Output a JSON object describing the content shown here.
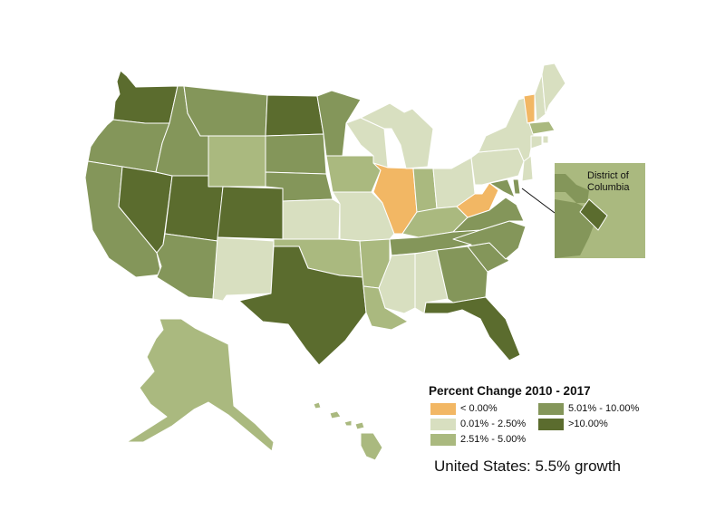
{
  "map": {
    "inset": {
      "label_line1": "District of",
      "label_line2": "Columbia"
    },
    "legend": {
      "title": "Percent Change 2010 - 2017",
      "classes": [
        {
          "key": "neg",
          "label": "< 0.00%",
          "color": "#f2b764"
        },
        {
          "key": "c1",
          "label": "0.01% - 2.50%",
          "color": "#d8dfc0"
        },
        {
          "key": "c2",
          "label": "2.51% - 5.00%",
          "color": "#aab97f"
        },
        {
          "key": "c3",
          "label": "5.01% - 10.00%",
          "color": "#84965a"
        },
        {
          "key": "c4",
          "label": ">10.00%",
          "color": "#5b6c2e"
        }
      ]
    },
    "summary": "United States: 5.5% growth",
    "states": {
      "WA": "c4",
      "OR": "c3",
      "CA": "c3",
      "NV": "c4",
      "ID": "c3",
      "MT": "c3",
      "WY": "c2",
      "UT": "c4",
      "AZ": "c3",
      "CO": "c4",
      "NM": "c1",
      "ND": "c4",
      "SD": "c3",
      "NE": "c3",
      "KS": "c1",
      "OK": "c2",
      "TX": "c4",
      "MN": "c3",
      "IA": "c2",
      "MO": "c1",
      "AR": "c2",
      "LA": "c2",
      "WI": "c1",
      "IL": "neg",
      "MI": "c1",
      "IN": "c2",
      "OH": "c1",
      "KY": "c2",
      "TN": "c3",
      "MS": "c1",
      "AL": "c1",
      "GA": "c3",
      "FL": "c4",
      "SC": "c3",
      "NC": "c3",
      "VA": "c3",
      "WV": "neg",
      "MD": "c3",
      "DE": "c3",
      "PA": "c1",
      "NY": "c1",
      "NJ": "c1",
      "VT": "neg",
      "NH": "c1",
      "ME": "c1",
      "MA": "c2",
      "CT": "c1",
      "RI": "c1",
      "AK": "c2",
      "HI": "c2",
      "DC": "c4"
    }
  }
}
